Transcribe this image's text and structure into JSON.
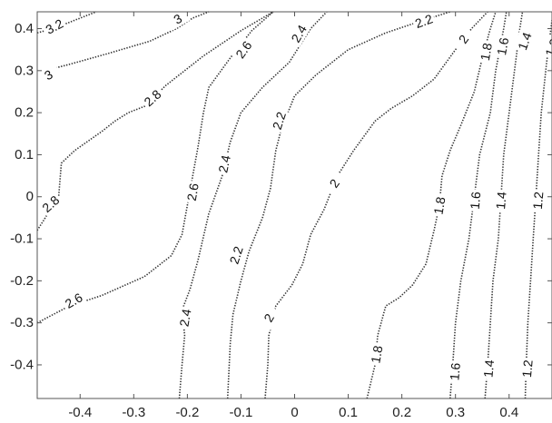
{
  "chart_data": {
    "type": "contour",
    "title": "",
    "xlabel": "",
    "ylabel": "",
    "xlim": [
      -0.48,
      0.48
    ],
    "ylim": [
      -0.48,
      0.44
    ],
    "xticks": [
      -0.4,
      -0.3,
      -0.2,
      -0.1,
      0,
      0.1,
      0.2,
      0.3,
      0.4
    ],
    "yticks": [
      0.4,
      0.3,
      0.2,
      0.1,
      0,
      -0.1,
      -0.2,
      -0.3,
      -0.4
    ],
    "grid": false,
    "levels": [
      {
        "value": "3.2",
        "points": [
          [
            -0.48,
            0.39
          ],
          [
            -0.45,
            0.4
          ],
          [
            -0.41,
            0.42
          ],
          [
            -0.37,
            0.44
          ]
        ],
        "labels": [
          {
            "x": -0.448,
            "y": 0.405,
            "angle": -28
          }
        ]
      },
      {
        "value": "3",
        "points": [
          [
            -0.48,
            0.295
          ],
          [
            -0.42,
            0.315
          ],
          [
            -0.35,
            0.34
          ],
          [
            -0.27,
            0.37
          ],
          [
            -0.22,
            0.4
          ],
          [
            -0.19,
            0.425
          ],
          [
            -0.16,
            0.44
          ]
        ],
        "labels": [
          {
            "x": -0.459,
            "y": 0.29,
            "angle": -30
          },
          {
            "x": -0.218,
            "y": 0.423,
            "angle": -30
          }
        ]
      },
      {
        "value": "2.8",
        "points": [
          [
            -0.48,
            -0.08
          ],
          [
            -0.46,
            -0.04
          ],
          [
            -0.44,
            0.0
          ],
          [
            -0.435,
            0.08
          ],
          [
            -0.41,
            0.11
          ],
          [
            -0.36,
            0.155
          ],
          [
            -0.335,
            0.18
          ],
          [
            -0.31,
            0.2
          ],
          [
            -0.28,
            0.215
          ],
          [
            -0.24,
            0.265
          ],
          [
            -0.17,
            0.335
          ],
          [
            -0.1,
            0.395
          ],
          [
            -0.04,
            0.44
          ]
        ],
        "labels": [
          {
            "x": -0.455,
            "y": -0.017,
            "angle": -42
          },
          {
            "x": -0.265,
            "y": 0.235,
            "angle": -42
          }
        ]
      },
      {
        "value": "2.6",
        "points": [
          [
            -0.48,
            -0.3
          ],
          [
            -0.42,
            -0.26
          ],
          [
            -0.36,
            -0.235
          ],
          [
            -0.28,
            -0.19
          ],
          [
            -0.23,
            -0.14
          ],
          [
            -0.21,
            -0.09
          ],
          [
            -0.2,
            -0.02
          ],
          [
            -0.19,
            0.05
          ],
          [
            -0.18,
            0.12
          ],
          [
            -0.17,
            0.2
          ],
          [
            -0.16,
            0.26
          ],
          [
            -0.12,
            0.33
          ],
          [
            -0.08,
            0.395
          ],
          [
            -0.04,
            0.44
          ]
        ],
        "labels": [
          {
            "x": -0.412,
            "y": -0.247,
            "angle": -30
          },
          {
            "x": -0.19,
            "y": 0.011,
            "angle": -80
          },
          {
            "x": -0.095,
            "y": 0.35,
            "angle": -55
          }
        ]
      },
      {
        "value": "2.4",
        "points": [
          [
            -0.215,
            -0.48
          ],
          [
            -0.21,
            -0.4
          ],
          [
            -0.205,
            -0.33
          ],
          [
            -0.21,
            -0.27
          ],
          [
            -0.195,
            -0.22
          ],
          [
            -0.18,
            -0.15
          ],
          [
            -0.16,
            -0.04
          ],
          [
            -0.135,
            0.05
          ],
          [
            -0.12,
            0.13
          ],
          [
            -0.1,
            0.2
          ],
          [
            -0.06,
            0.26
          ],
          [
            -0.01,
            0.32
          ],
          [
            0.01,
            0.36
          ],
          [
            0.03,
            0.4
          ],
          [
            0.06,
            0.44
          ]
        ],
        "labels": [
          {
            "x": -0.204,
            "y": -0.288,
            "angle": -80
          },
          {
            "x": -0.131,
            "y": 0.078,
            "angle": -78
          },
          {
            "x": 0.008,
            "y": 0.388,
            "angle": -60
          }
        ]
      },
      {
        "value": "2.2",
        "points": [
          [
            -0.125,
            -0.48
          ],
          [
            -0.12,
            -0.35
          ],
          [
            -0.115,
            -0.28
          ],
          [
            -0.1,
            -0.2
          ],
          [
            -0.085,
            -0.13
          ],
          [
            -0.06,
            -0.05
          ],
          [
            -0.045,
            0.02
          ],
          [
            -0.035,
            0.11
          ],
          [
            -0.025,
            0.16
          ],
          [
            0.0,
            0.24
          ],
          [
            0.04,
            0.29
          ],
          [
            0.1,
            0.35
          ],
          [
            0.17,
            0.39
          ],
          [
            0.24,
            0.42
          ],
          [
            0.29,
            0.44
          ]
        ],
        "labels": [
          {
            "x": -0.109,
            "y": -0.139,
            "angle": -72
          },
          {
            "x": -0.029,
            "y": 0.181,
            "angle": -72
          },
          {
            "x": 0.241,
            "y": 0.418,
            "angle": -20
          }
        ]
      },
      {
        "value": "2",
        "points": [
          [
            -0.055,
            -0.48
          ],
          [
            -0.05,
            -0.4
          ],
          [
            -0.048,
            -0.33
          ],
          [
            -0.035,
            -0.26
          ],
          [
            -0.005,
            -0.21
          ],
          [
            0.015,
            -0.16
          ],
          [
            0.03,
            -0.09
          ],
          [
            0.055,
            -0.03
          ],
          [
            0.08,
            0.05
          ],
          [
            0.11,
            0.11
          ],
          [
            0.15,
            0.18
          ],
          [
            0.18,
            0.21
          ],
          [
            0.22,
            0.24
          ],
          [
            0.26,
            0.28
          ],
          [
            0.3,
            0.35
          ],
          [
            0.33,
            0.4
          ],
          [
            0.36,
            0.44
          ]
        ],
        "labels": [
          {
            "x": -0.048,
            "y": -0.288,
            "angle": -60
          },
          {
            "x": 0.074,
            "y": 0.032,
            "angle": -55
          },
          {
            "x": 0.315,
            "y": 0.375,
            "angle": -55
          }
        ]
      },
      {
        "value": "1.8",
        "points": [
          [
            0.135,
            -0.48
          ],
          [
            0.15,
            -0.4
          ],
          [
            0.155,
            -0.33
          ],
          [
            0.17,
            -0.26
          ],
          [
            0.195,
            -0.24
          ],
          [
            0.22,
            -0.21
          ],
          [
            0.245,
            -0.16
          ],
          [
            0.26,
            -0.08
          ],
          [
            0.27,
            -0.02
          ],
          [
            0.275,
            0.05
          ],
          [
            0.29,
            0.11
          ],
          [
            0.31,
            0.17
          ],
          [
            0.335,
            0.25
          ],
          [
            0.35,
            0.33
          ],
          [
            0.365,
            0.4
          ],
          [
            0.375,
            0.44
          ]
        ],
        "labels": [
          {
            "x": 0.153,
            "y": -0.375,
            "angle": -80
          },
          {
            "x": 0.27,
            "y": -0.021,
            "angle": -80
          },
          {
            "x": 0.357,
            "y": 0.345,
            "angle": -80
          }
        ]
      },
      {
        "value": "1.6",
        "points": [
          [
            0.29,
            -0.48
          ],
          [
            0.295,
            -0.4
          ],
          [
            0.3,
            -0.3
          ],
          [
            0.31,
            -0.2
          ],
          [
            0.325,
            -0.1
          ],
          [
            0.335,
            0.0
          ],
          [
            0.345,
            0.1
          ],
          [
            0.365,
            0.2
          ],
          [
            0.375,
            0.3
          ],
          [
            0.39,
            0.4
          ],
          [
            0.395,
            0.44
          ]
        ],
        "labels": [
          {
            "x": 0.299,
            "y": -0.416,
            "angle": -85
          },
          {
            "x": 0.337,
            "y": -0.009,
            "angle": -85
          },
          {
            "x": 0.388,
            "y": 0.358,
            "angle": -80
          }
        ]
      },
      {
        "value": "1.4",
        "points": [
          [
            0.355,
            -0.48
          ],
          [
            0.36,
            -0.4
          ],
          [
            0.365,
            -0.3
          ],
          [
            0.37,
            -0.2
          ],
          [
            0.38,
            -0.1
          ],
          [
            0.385,
            0.0
          ],
          [
            0.39,
            0.1
          ],
          [
            0.4,
            0.2
          ],
          [
            0.41,
            0.3
          ],
          [
            0.42,
            0.4
          ],
          [
            0.425,
            0.44
          ]
        ],
        "labels": [
          {
            "x": 0.362,
            "y": -0.409,
            "angle": -85
          },
          {
            "x": 0.385,
            "y": -0.009,
            "angle": -85
          },
          {
            "x": 0.429,
            "y": 0.37,
            "angle": -70
          }
        ]
      },
      {
        "value": "1.2",
        "points": [
          [
            0.43,
            -0.48
          ],
          [
            0.432,
            -0.4
          ],
          [
            0.435,
            -0.3
          ],
          [
            0.44,
            -0.2
          ],
          [
            0.445,
            -0.1
          ],
          [
            0.45,
            0.0
          ],
          [
            0.455,
            0.1
          ],
          [
            0.46,
            0.2
          ],
          [
            0.47,
            0.32
          ],
          [
            0.48,
            0.42
          ]
        ],
        "labels": [
          {
            "x": 0.434,
            "y": -0.409,
            "angle": -85
          },
          {
            "x": 0.454,
            "y": -0.009,
            "angle": -85
          },
          {
            "x": 0.48,
            "y": 0.355,
            "angle": -70
          }
        ]
      }
    ]
  }
}
